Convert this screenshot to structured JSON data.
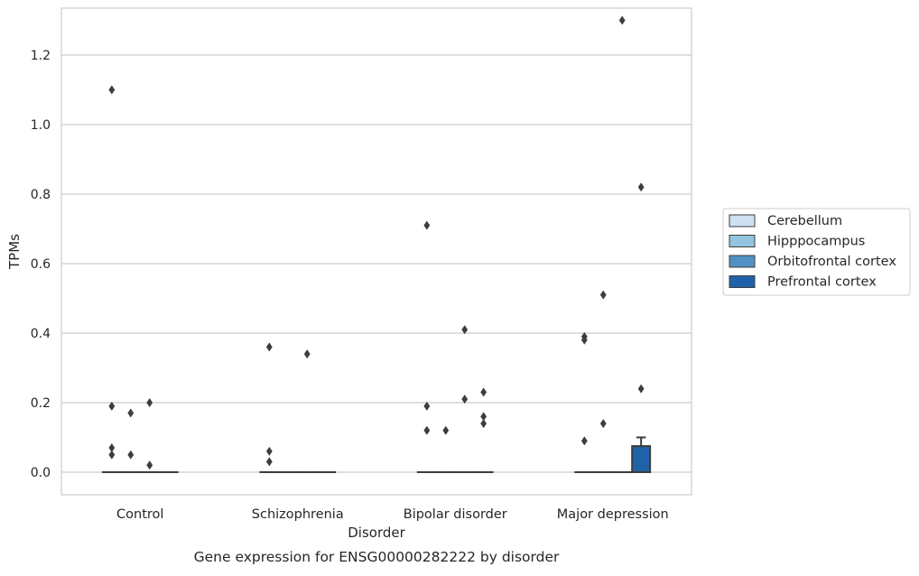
{
  "chart_data": {
    "type": "box",
    "caption": "Gene expression for ENSG00000282222 by disorder",
    "xlabel": "Disorder",
    "ylabel": "TPMs",
    "categories": [
      "Control",
      "Schizophrenia",
      "Bipolar disorder",
      "Major depression"
    ],
    "ylim": [
      -0.065,
      1.335
    ],
    "yticks": [
      0.0,
      0.2,
      0.4,
      0.6,
      0.8,
      1.0,
      1.2
    ],
    "ytick_labels": [
      "0.0",
      "0.2",
      "0.4",
      "0.6",
      "0.8",
      "1.0",
      "1.2"
    ],
    "grid": "horizontal",
    "legend_position": "right",
    "series": [
      {
        "name": "Cerebellum",
        "color": "#cfe0f0",
        "boxes": [
          {
            "q1": 0,
            "median": 0,
            "q3": 0,
            "whisker_low": 0,
            "whisker_high": 0,
            "outliers": [
              1.1,
              0.19,
              0.07,
              0.05
            ]
          },
          {
            "q1": 0,
            "median": 0,
            "q3": 0,
            "whisker_low": 0,
            "whisker_high": 0,
            "outliers": [
              0.36,
              0.06,
              0.03
            ]
          },
          {
            "q1": 0,
            "median": 0,
            "q3": 0,
            "whisker_low": 0,
            "whisker_high": 0,
            "outliers": [
              0.71,
              0.19,
              0.12
            ]
          },
          {
            "q1": 0,
            "median": 0,
            "q3": 0,
            "whisker_low": 0,
            "whisker_high": 0,
            "outliers": [
              0.39,
              0.38,
              0.09
            ]
          }
        ]
      },
      {
        "name": "Hipppocampus",
        "color": "#93c4de",
        "boxes": [
          {
            "q1": 0,
            "median": 0,
            "q3": 0,
            "whisker_low": 0,
            "whisker_high": 0,
            "outliers": [
              0.17,
              0.05
            ]
          },
          {
            "q1": 0,
            "median": 0,
            "q3": 0,
            "whisker_low": 0,
            "whisker_high": 0,
            "outliers": []
          },
          {
            "q1": 0,
            "median": 0,
            "q3": 0,
            "whisker_low": 0,
            "whisker_high": 0,
            "outliers": [
              0.12
            ]
          },
          {
            "q1": 0,
            "median": 0,
            "q3": 0,
            "whisker_low": 0,
            "whisker_high": 0,
            "outliers": [
              0.51,
              0.14
            ]
          }
        ]
      },
      {
        "name": "Orbitofrontal cortex",
        "color": "#4f91c4",
        "boxes": [
          {
            "q1": 0,
            "median": 0,
            "q3": 0,
            "whisker_low": 0,
            "whisker_high": 0,
            "outliers": [
              0.2,
              0.02
            ]
          },
          {
            "q1": 0,
            "median": 0,
            "q3": 0,
            "whisker_low": 0,
            "whisker_high": 0,
            "outliers": [
              0.34
            ]
          },
          {
            "q1": 0,
            "median": 0,
            "q3": 0,
            "whisker_low": 0,
            "whisker_high": 0,
            "outliers": [
              0.41,
              0.21
            ]
          },
          {
            "q1": 0,
            "median": 0,
            "q3": 0,
            "whisker_low": 0,
            "whisker_high": 0,
            "outliers": [
              1.3
            ]
          }
        ]
      },
      {
        "name": "Prefrontal cortex",
        "color": "#2062a9",
        "boxes": [
          {
            "q1": 0,
            "median": 0,
            "q3": 0,
            "whisker_low": 0,
            "whisker_high": 0,
            "outliers": []
          },
          {
            "q1": 0,
            "median": 0,
            "q3": 0,
            "whisker_low": 0,
            "whisker_high": 0,
            "outliers": []
          },
          {
            "q1": 0,
            "median": 0,
            "q3": 0,
            "whisker_low": 0,
            "whisker_high": 0,
            "outliers": [
              0.23,
              0.16,
              0.14
            ]
          },
          {
            "q1": 0,
            "median": 0,
            "q3": 0.075,
            "whisker_low": 0,
            "whisker_high": 0.1,
            "outliers": [
              0.82,
              0.24
            ]
          }
        ]
      }
    ]
  }
}
